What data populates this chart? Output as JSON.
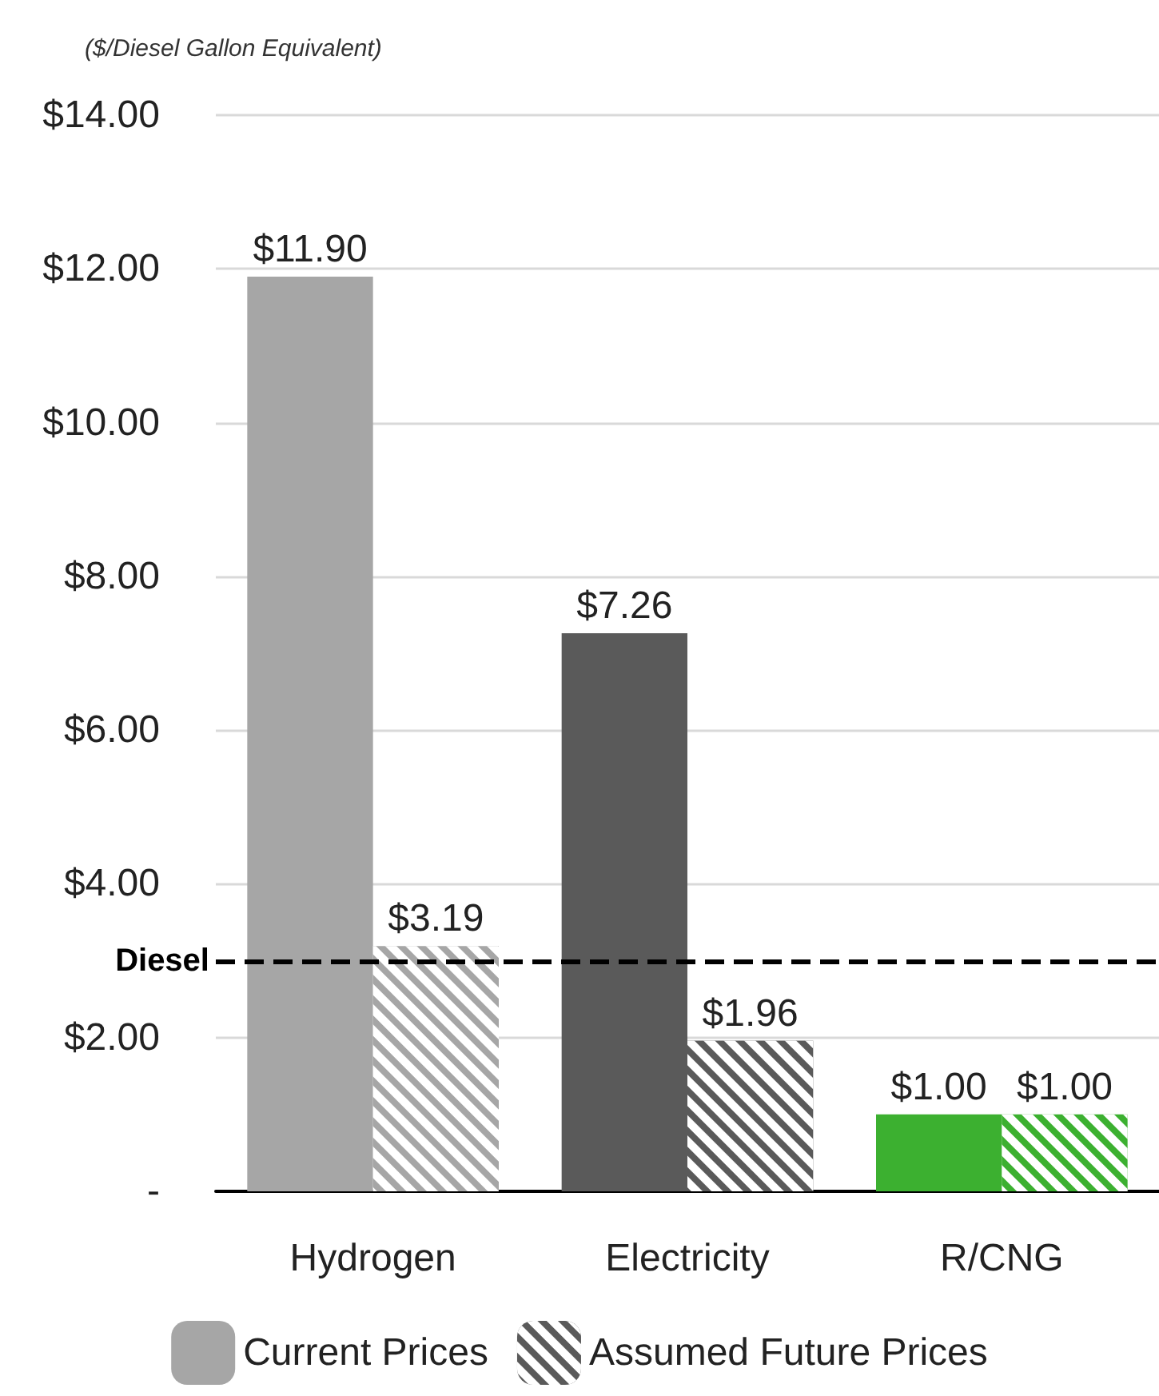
{
  "chart_data": {
    "type": "bar",
    "ylabel": "($/Diesel Gallon Equivalent)",
    "categories": [
      "Hydrogen",
      "Electricity",
      "R/CNG"
    ],
    "series": [
      {
        "name": "Current Prices",
        "color": "#a6a6a6",
        "colors": [
          "#a6a6a6",
          "#5a5a5a",
          "#3cb030"
        ],
        "values": [
          11.9,
          7.26,
          1.0
        ],
        "value_labels": [
          "$11.90",
          "$7.26",
          "$1.00"
        ]
      },
      {
        "name": "Assumed Future Prices",
        "color": "#5a5a5a",
        "colors": [
          "#a6a6a6",
          "#5a5a5a",
          "#3cb030"
        ],
        "values": [
          3.19,
          1.96,
          1.0
        ],
        "value_labels": [
          "$3.19",
          "$1.96",
          "$1.00"
        ]
      }
    ],
    "ylim": [
      0,
      14
    ],
    "yticks": [
      {
        "value": 0,
        "label": "-"
      },
      {
        "value": 2,
        "label": "$2.00"
      },
      {
        "value": 4,
        "label": "$4.00"
      },
      {
        "value": 6,
        "label": "$6.00"
      },
      {
        "value": 8,
        "label": "$8.00"
      },
      {
        "value": 10,
        "label": "$10.00"
      },
      {
        "value": 12,
        "label": "$12.00"
      },
      {
        "value": 14,
        "label": "$14.00"
      }
    ],
    "ref_lines": [
      {
        "axis": "y",
        "value": 3,
        "label": "Diesel",
        "color": "#000000",
        "line_style": "dashed"
      }
    ],
    "grid": "y",
    "legend": "bottom"
  }
}
